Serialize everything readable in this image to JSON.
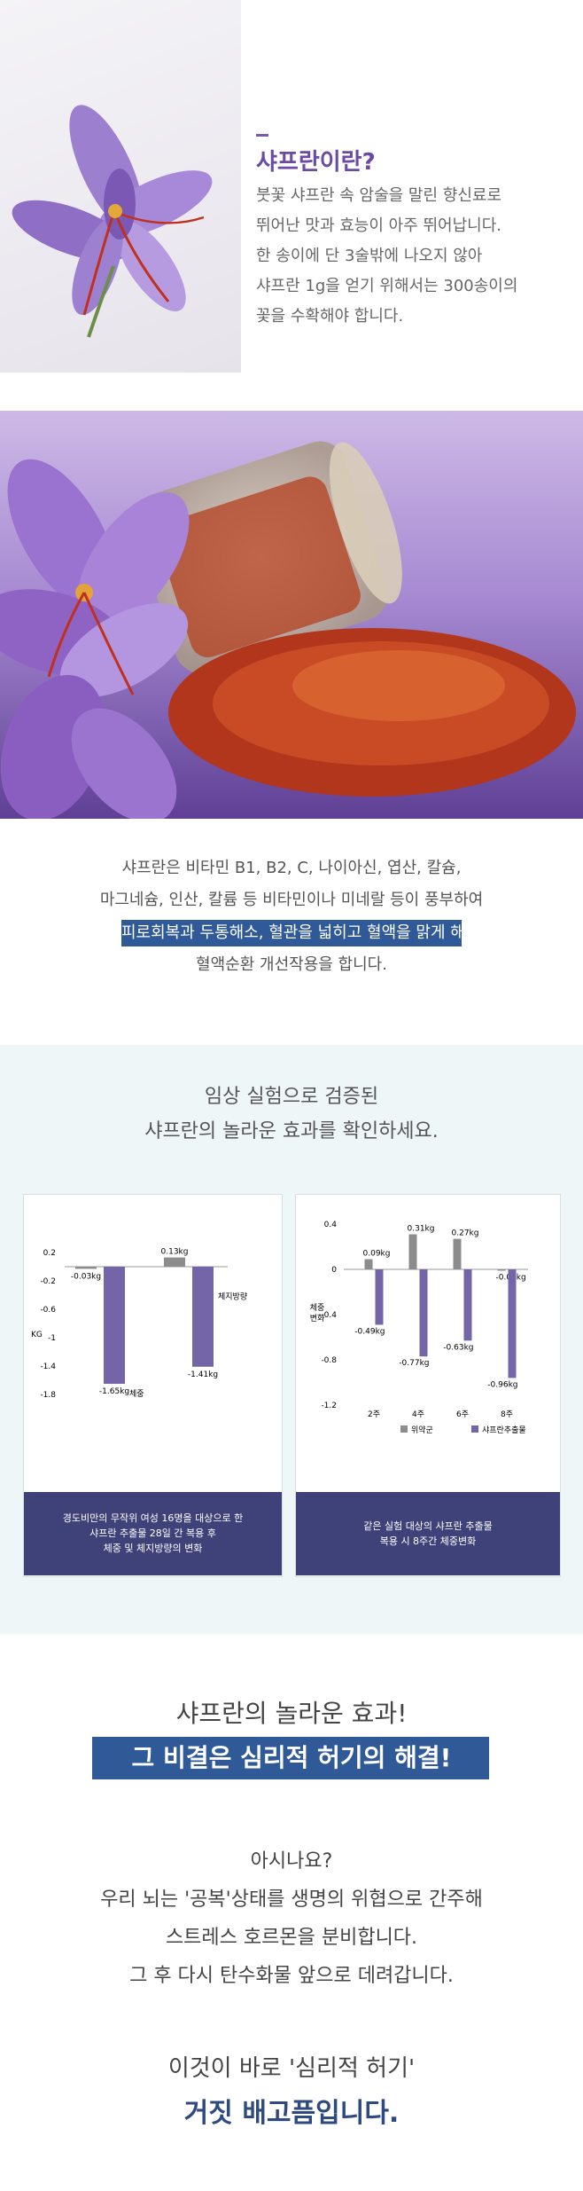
{
  "intro": {
    "title": "샤프란이란?",
    "lines": [
      "붓꽃 샤프란 속 암술을 말린 향신료로",
      "뛰어난 맛과 효능이 아주 뛰어납니다.",
      "한 송이에 단 3술밖에 나오지 않아",
      "샤프란 1g을 얻기 위해서는 300송이의",
      "꽃을 수확해야 합니다."
    ]
  },
  "nutrients": {
    "lines_before": [
      "샤프란은 비타민 B1, B2, C, 나이아신, 엽산, 칼슘,",
      "마그네슘, 인산, 칼륨 등 비타민이나 미네랄 등이 풍부하여"
    ],
    "highlight": "피로회복과 두통해소, 혈관을 넓히고 혈액을 맑게 해",
    "lines_after": [
      "혈액순환 개선작용을 합니다."
    ]
  },
  "study": {
    "heading": [
      "임상 실험으로 검증된",
      "샤프란의 놀라운 효과를 확인하세요."
    ]
  },
  "chart_data": [
    {
      "type": "bar",
      "title": "",
      "ylabel": "KG",
      "ylim": [
        -1.8,
        0.2
      ],
      "yticks": [
        "0.2",
        "-0.2",
        "-0.6",
        "-1",
        "-1.4",
        "-1.8"
      ],
      "ytick_values": [
        0.2,
        -0.2,
        -0.6,
        -1,
        -1.4,
        -1.8
      ],
      "bars": [
        {
          "value": -0.03,
          "label": "-0.03kg",
          "color": "#8c8c8c",
          "slot": 0
        },
        {
          "value": -1.65,
          "label": "-1.65kg",
          "color": "#7464a8",
          "slot": 0.8,
          "name": "체중"
        },
        {
          "value": 0.13,
          "label": "0.13kg",
          "color": "#8c8c8c",
          "slot": 2.5
        },
        {
          "value": -1.41,
          "label": "-1.41kg",
          "color": "#7464a8",
          "slot": 3.3,
          "name": "체지방량"
        }
      ],
      "caption": [
        "경도비만의 무작위 여성 16명을 대상으로 한",
        "샤프란 추출물 28일 간 복용 후",
        "체중 및 체지방량의 변화"
      ]
    },
    {
      "type": "bar",
      "title": "",
      "ylabel": "체중 변화",
      "ylim": [
        -1.2,
        0.4
      ],
      "yticks": [
        "0.4",
        "0",
        "-0.4",
        "-0.8",
        "-1.2"
      ],
      "ytick_values": [
        0.4,
        0,
        -0.4,
        -0.8,
        -1.2
      ],
      "categories": [
        "2주",
        "4주",
        "6주",
        "8주"
      ],
      "series": [
        {
          "name": "위약군",
          "color": "#8c8c8c",
          "values": [
            0.09,
            0.31,
            0.27,
            -0.01
          ],
          "labels": [
            "0.09kg",
            "0.31kg",
            "0.27kg",
            "-0.01kg"
          ]
        },
        {
          "name": "샤프란추출물",
          "color": "#7464a8",
          "values": [
            -0.49,
            -0.77,
            -0.63,
            -0.96
          ],
          "labels": [
            "-0.49kg",
            "-0.77kg",
            "-0.63kg",
            "-0.96kg"
          ]
        }
      ],
      "caption": [
        "같은 실험 대상의 샤프란 추출물",
        "복용 시 8주간 체중변화"
      ]
    }
  ],
  "effect": {
    "line": "샤프란의 놀라운 효과!",
    "banner": "그 비결은 심리적 허기의 해결!"
  },
  "body": {
    "lines": [
      "아시나요?",
      "우리 뇌는 '공복'상태를 생명의 위협으로 간주해",
      "스트레스 호르몬을 분비합니다.",
      "그 후 다시 탄수화물 앞으로 데려갑니다."
    ]
  },
  "closing": {
    "line": "이것이 바로 '심리적 허기'",
    "emphasis": "거짓 배고픔입니다."
  },
  "colors": {
    "purple": "#6b4aa5",
    "navy": "#2f5a97",
    "caption_bg": "#3f4278",
    "bar_gray": "#8c8c8c",
    "bar_purple": "#7464a8"
  }
}
